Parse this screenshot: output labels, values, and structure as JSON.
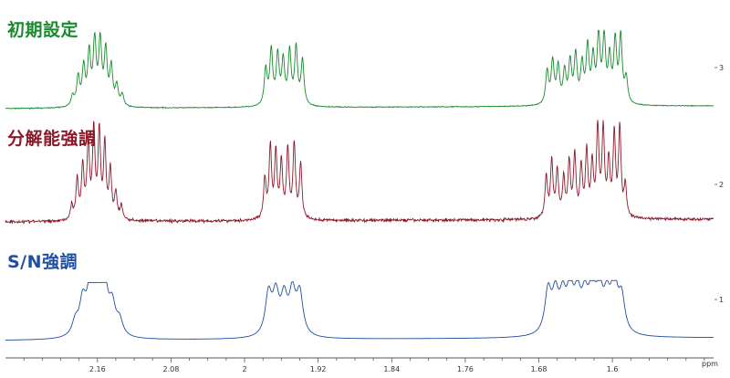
{
  "chart_data": {
    "type": "line",
    "xlabel": "ppm",
    "xlim": [
      2.26,
      1.49
    ],
    "x_reversed": true,
    "x_ticks": [
      2.16,
      2.08,
      2,
      1.92,
      1.84,
      1.76,
      1.68,
      1.6
    ],
    "x_tick_labels": [
      "2.16",
      "2.08",
      "2",
      "1.92",
      "1.84",
      "1.76",
      "1.68",
      "1.6"
    ],
    "right_ticks": [
      "3",
      "2",
      "1"
    ],
    "series": [
      {
        "name": "初期設定",
        "color": "#1a8a2e",
        "noise": 0.012,
        "multiplets": [
          {
            "ppm": [
              2.187,
              2.181,
              2.175,
              2.169,
              2.163,
              2.157,
              2.151,
              2.145,
              2.139,
              2.133
            ],
            "height": [
              0.16,
              0.44,
              0.58,
              0.78,
              0.98,
              0.96,
              0.82,
              0.58,
              0.3,
              0.18
            ]
          },
          {
            "ppm": [
              1.977,
              1.971,
              1.964,
              1.958,
              1.951,
              1.944,
              1.937
            ],
            "height": [
              0.55,
              0.82,
              0.74,
              0.66,
              0.8,
              0.86,
              0.68
            ]
          },
          {
            "ppm": [
              1.671,
              1.665,
              1.659,
              1.652,
              1.646,
              1.64,
              1.633,
              1.627,
              1.621,
              1.615,
              1.609,
              1.603,
              1.597,
              1.591,
              1.585
            ],
            "height": [
              0.5,
              0.64,
              0.56,
              0.48,
              0.62,
              0.72,
              0.58,
              0.84,
              0.66,
              1.0,
              0.96,
              0.66,
              0.92,
              1.0,
              0.38
            ]
          }
        ]
      },
      {
        "name": "分解能強調",
        "color": "#8b1a2a",
        "noise": 0.03,
        "multiplets": [
          {
            "ppm": [
              2.188,
              2.182,
              2.176,
              2.17,
              2.164,
              2.158,
              2.152,
              2.146,
              2.14,
              2.134
            ],
            "height": [
              0.16,
              0.46,
              0.6,
              0.86,
              1.0,
              0.98,
              0.84,
              0.56,
              0.3,
              0.16
            ]
          },
          {
            "ppm": [
              1.978,
              1.972,
              1.966,
              1.96,
              1.953,
              1.946,
              1.939
            ],
            "height": [
              0.46,
              0.82,
              0.74,
              0.64,
              0.78,
              0.84,
              0.62
            ]
          },
          {
            "ppm": [
              1.672,
              1.666,
              1.66,
              1.653,
              1.647,
              1.641,
              1.634,
              1.628,
              1.622,
              1.616,
              1.61,
              1.604,
              1.598,
              1.592,
              1.586
            ],
            "height": [
              0.48,
              0.64,
              0.52,
              0.44,
              0.62,
              0.7,
              0.56,
              0.74,
              0.6,
              1.0,
              0.98,
              0.62,
              0.92,
              1.0,
              0.36
            ]
          }
        ]
      },
      {
        "name": "S/N強調",
        "color": "#1f4fa0",
        "noise": 0.003,
        "multiplets": [
          {
            "ppm": [
              2.184,
              2.176,
              2.168,
              2.16,
              2.152,
              2.144,
              2.136
            ],
            "height": [
              0.28,
              0.66,
              0.9,
              0.86,
              0.92,
              0.58,
              0.3
            ]
          },
          {
            "ppm": [
              1.974,
              1.966,
              1.957,
              1.948,
              1.94
            ],
            "height": [
              0.82,
              0.76,
              0.7,
              0.8,
              0.82
            ]
          },
          {
            "ppm": [
              1.67,
              1.662,
              1.654,
              1.646,
              1.638,
              1.63,
              1.622,
              1.614,
              1.606,
              1.598,
              1.59
            ],
            "height": [
              0.84,
              0.72,
              0.66,
              0.82,
              0.7,
              0.64,
              0.86,
              0.78,
              0.62,
              1.0,
              0.7
            ]
          }
        ]
      }
    ]
  },
  "colors": {
    "axis": "#555555"
  }
}
